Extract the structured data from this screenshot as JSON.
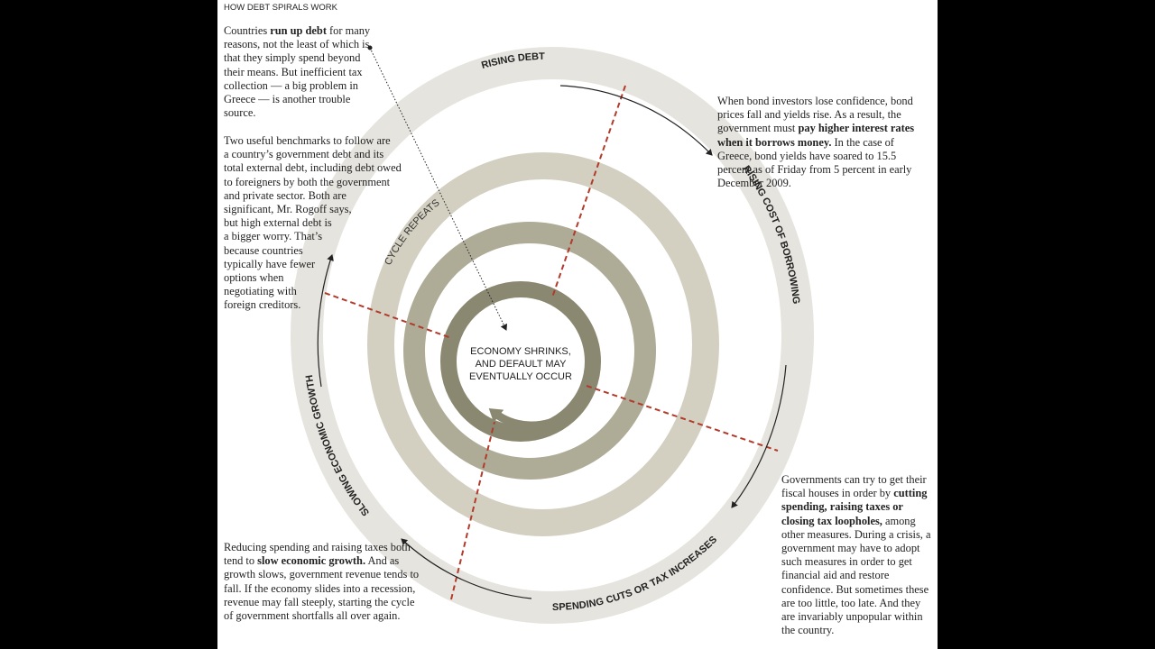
{
  "title": "HOW DEBT SPIRALS WORK",
  "intro": {
    "paragraph1": [
      "Countries ",
      "run up debt",
      " for many reasons, not the least of which is that they simply spend beyond their means. But inefficient tax collection — a big problem in Greece — is another trouble source."
    ],
    "paragraph2_lines": [
      "Two useful benchmarks to follow are",
      "a country’s government debt and its",
      "total external debt, including debt owed",
      "to foreigners by both the government",
      "and private sector. Both are",
      "significant, Mr. Rogoff says,",
      "but high external debt is",
      "a bigger worry. That’s",
      "because countries",
      "typically have fewer",
      "options when",
      "negotiating with",
      "foreign creditors."
    ]
  },
  "borrowing_note": [
    "When bond investors lose confidence, bond prices fall and yields rise. As a result, the government must ",
    "pay higher interest rates when it borrows money.",
    " In the case of Greece, bond yields have soared to 15.5 percent as of Friday from 5 percent in early December 2009."
  ],
  "austerity_note": [
    "Governments can try to get their fiscal houses in order by ",
    "cutting spending, raising taxes or closing tax loopholes,",
    " among other measures. During a crisis, a government may have to adopt such measures in order to get financial aid and restore confidence. But sometimes these are too little, too late. And they are invariably unpopular within the country."
  ],
  "growth_note": [
    "Reducing spending and raising taxes both tend to ",
    "slow economic growth.",
    " And as growth slows, government revenue tends to fall. If the economy slides into a recession, revenue may fall steeply, starting the cycle of government shortfalls all over again."
  ],
  "stages": [
    "RISING DEBT",
    "RISING COST OF BORROWING",
    "SPENDING CUTS OR TAX INCREASES",
    "SLOWING ECONOMIC GROWTH"
  ],
  "cycle_label": "CYCLE REPEATS",
  "center_lines": [
    "ECONOMY SHRINKS,",
    "AND DEFAULT MAY",
    "EVENTUALLY OCCUR"
  ]
}
